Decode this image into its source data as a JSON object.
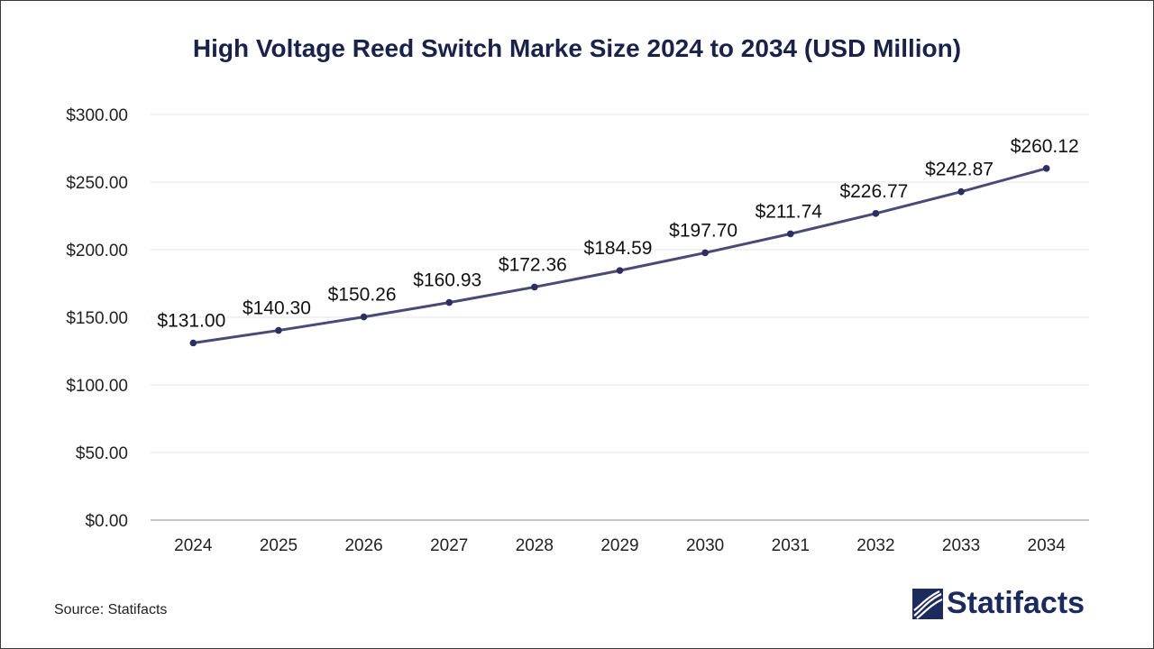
{
  "chart_data": {
    "type": "line",
    "title": "High Voltage Reed Switch Marke Size 2024 to 2034 (USD Million)",
    "xlabel": "",
    "ylabel": "",
    "categories": [
      "2024",
      "2025",
      "2026",
      "2027",
      "2028",
      "2029",
      "2030",
      "2031",
      "2032",
      "2033",
      "2034"
    ],
    "values": [
      131.0,
      140.3,
      150.26,
      160.93,
      172.36,
      184.59,
      197.7,
      211.74,
      226.77,
      242.87,
      260.12
    ],
    "value_labels": [
      "$131.00",
      "$140.30",
      "$150.26",
      "$160.93",
      "$172.36",
      "$184.59",
      "$197.70",
      "$211.74",
      "$226.77",
      "$242.87",
      "$260.12"
    ],
    "ylim": [
      0,
      300
    ],
    "yticks": [
      0,
      50,
      100,
      150,
      200,
      250,
      300
    ],
    "ytick_labels": [
      "$0.00",
      "$50.00",
      "$100.00",
      "$150.00",
      "$200.00",
      "$250.00",
      "$300.00"
    ],
    "grid": true,
    "legend": "none",
    "line_color": "#4a4a78",
    "marker_color": "#2b2e5e"
  },
  "footer": {
    "source": "Source: Statifacts",
    "brand": "Statifacts",
    "brand_color": "#1d2a5e"
  }
}
